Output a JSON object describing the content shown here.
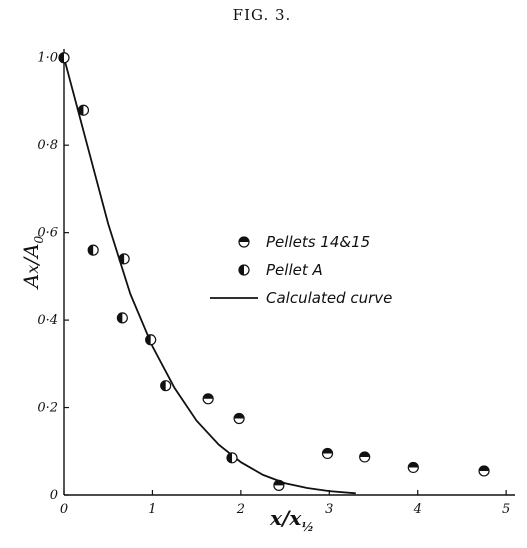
{
  "figure_title": "FIG. 3.",
  "chart_data": {
    "type": "scatter",
    "xlabel": "x/x½",
    "ylabel": "Ax/A0",
    "xlim": [
      0,
      5.1
    ],
    "ylim": [
      0,
      1.02
    ],
    "xticks": [
      0,
      1,
      2,
      3,
      4,
      5
    ],
    "xtick_labels": [
      "0",
      "1",
      "2",
      "3",
      "4",
      "5"
    ],
    "yticks": [
      0,
      0.2,
      0.4,
      0.6,
      0.8,
      1.0
    ],
    "ytick_labels": [
      "0",
      "0·2",
      "0·4",
      "0·6",
      "0·8",
      "1·0"
    ],
    "grid": false,
    "legend_position": "center-right",
    "series": [
      {
        "name": "Pellets 14&15",
        "marker": "circle-half-top",
        "points": [
          [
            1.63,
            0.22
          ],
          [
            1.98,
            0.175
          ],
          [
            2.43,
            0.022
          ],
          [
            2.98,
            0.095
          ],
          [
            3.4,
            0.087
          ],
          [
            3.95,
            0.063
          ],
          [
            4.75,
            0.055
          ]
        ]
      },
      {
        "name": "Pellet A",
        "marker": "circle-half-left",
        "points": [
          [
            0,
            1.0
          ],
          [
            0.22,
            0.88
          ],
          [
            0.33,
            0.56
          ],
          [
            0.68,
            0.54
          ],
          [
            0.66,
            0.405
          ],
          [
            0.98,
            0.355
          ],
          [
            1.15,
            0.25
          ],
          [
            1.9,
            0.085
          ]
        ]
      },
      {
        "name": "Calculated curve",
        "marker": "line",
        "points": [
          [
            0,
            1.0
          ],
          [
            0.25,
            0.81
          ],
          [
            0.5,
            0.62
          ],
          [
            0.75,
            0.46
          ],
          [
            1.0,
            0.34
          ],
          [
            1.25,
            0.245
          ],
          [
            1.5,
            0.17
          ],
          [
            1.75,
            0.115
          ],
          [
            2.0,
            0.075
          ],
          [
            2.25,
            0.046
          ],
          [
            2.5,
            0.027
          ],
          [
            2.75,
            0.016
          ],
          [
            3.0,
            0.009
          ],
          [
            3.3,
            0.004
          ]
        ]
      }
    ]
  }
}
